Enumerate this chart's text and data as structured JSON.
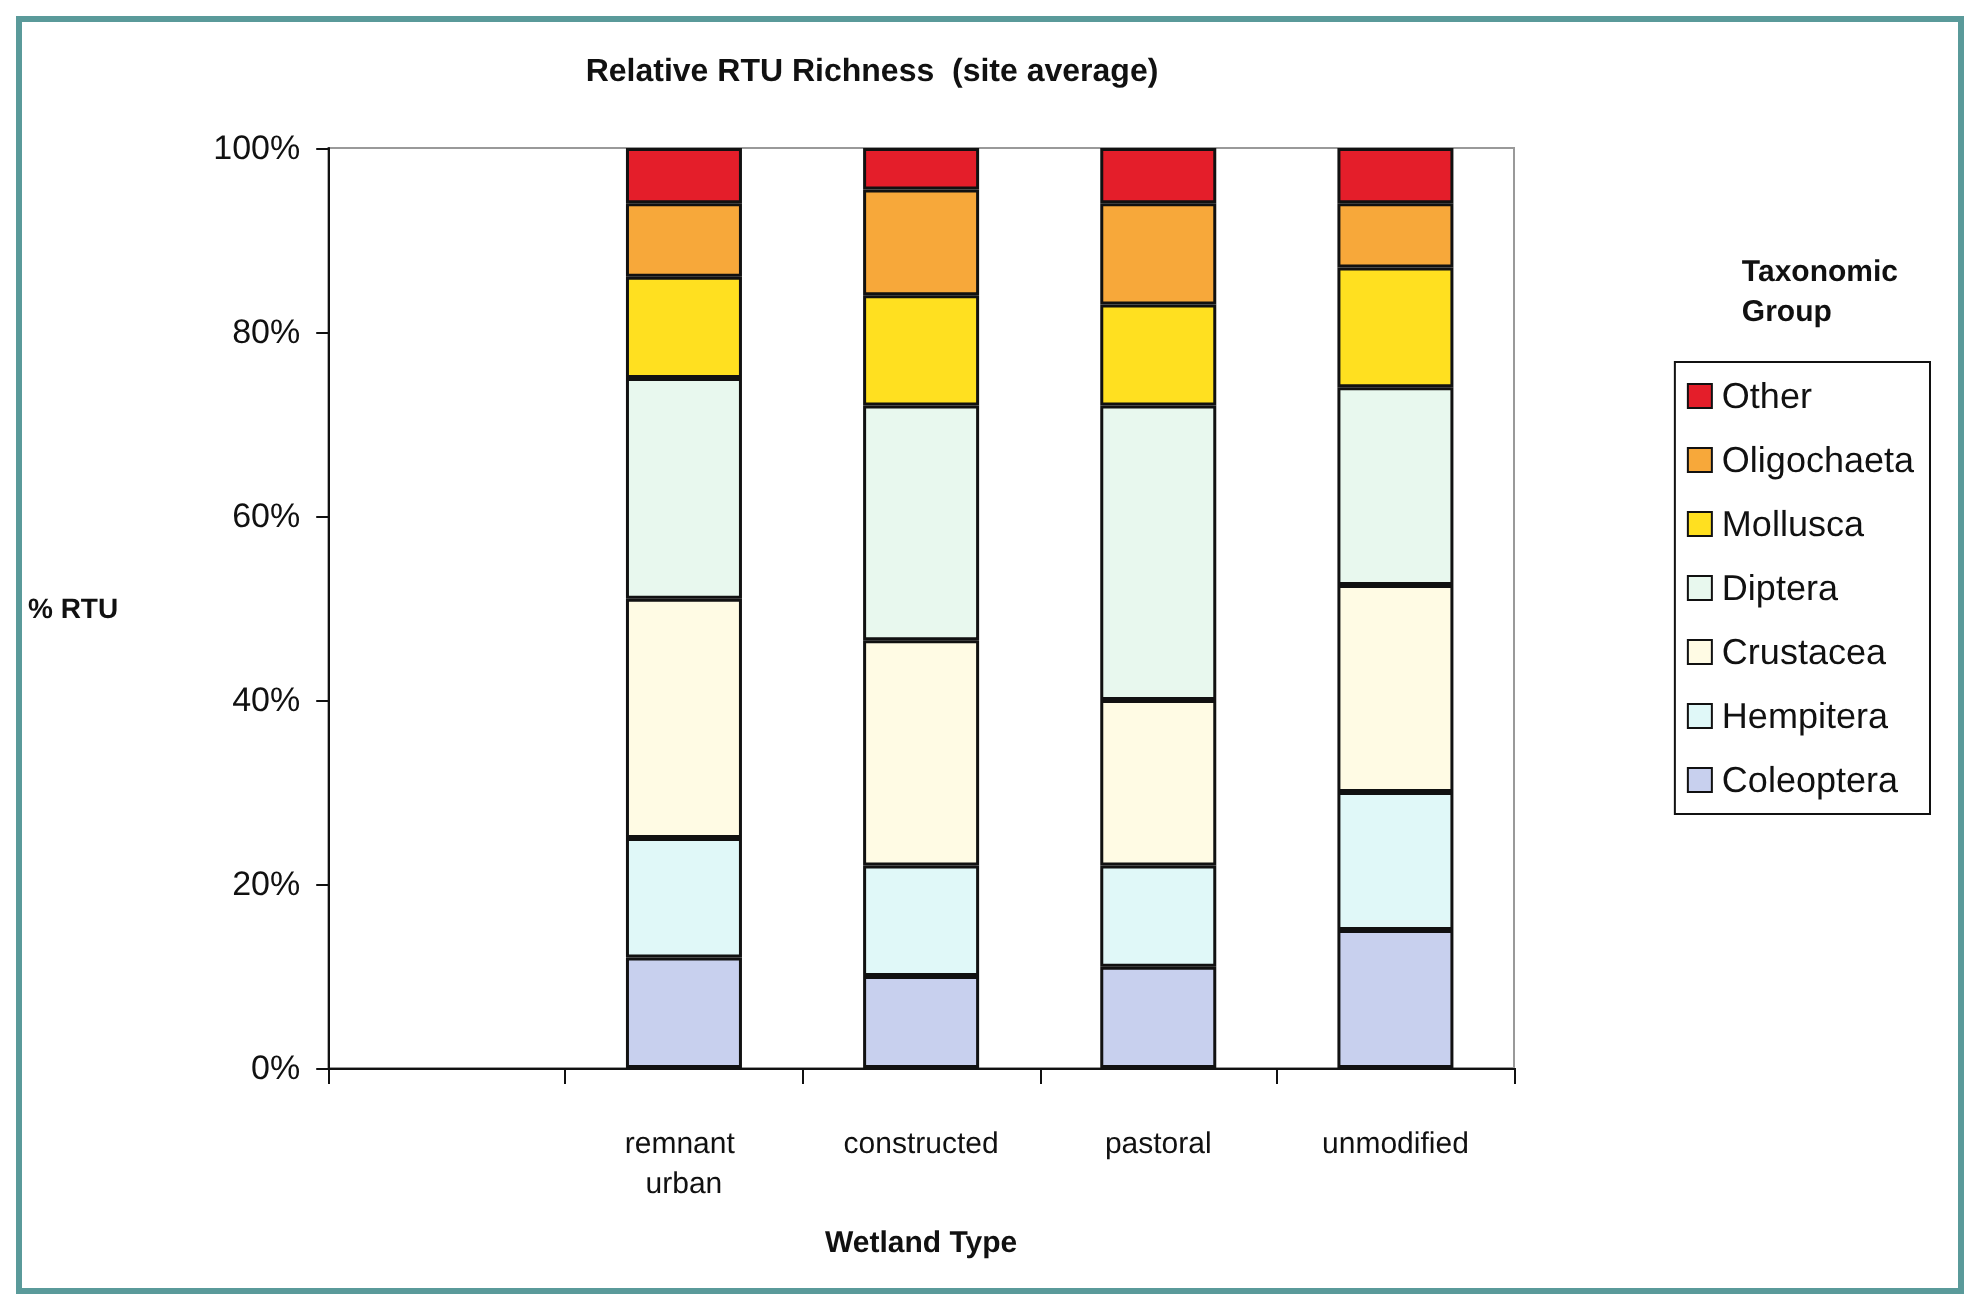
{
  "chart_data": {
    "type": "bar",
    "stacked": true,
    "title": "Relative RTU Richness  (site average)",
    "xlabel": "Wetland Type",
    "ylabel": "% RTU",
    "legend_title": "Taxonomic Group",
    "legend": "right",
    "categories": [
      null,
      "remnant urban",
      "constructed",
      "pastoral",
      "unmodified"
    ],
    "ylim": [
      0,
      100
    ],
    "yticks": [
      {
        "value": 0,
        "label": "0%"
      },
      {
        "value": 20,
        "label": "20%"
      },
      {
        "value": 40,
        "label": "40%"
      },
      {
        "value": 60,
        "label": "60%"
      },
      {
        "value": 80,
        "label": "80%"
      },
      {
        "value": 100,
        "label": "100%"
      }
    ],
    "series": [
      {
        "name": "Coleoptera",
        "color": "#c8d0ee",
        "values": [
          null,
          12,
          10,
          11,
          15
        ]
      },
      {
        "name": "Hempitera",
        "color": "#e0f8f8",
        "values": [
          null,
          13,
          12,
          11,
          15
        ]
      },
      {
        "name": "Crustacea",
        "color": "#fffbe4",
        "values": [
          null,
          26,
          24.5,
          18,
          22.5
        ]
      },
      {
        "name": "Diptera",
        "color": "#e8f8ee",
        "values": [
          null,
          24,
          25.5,
          32,
          21.5
        ]
      },
      {
        "name": "Mollusca",
        "color": "#ffe020",
        "values": [
          null,
          11,
          12,
          11,
          13
        ]
      },
      {
        "name": "Oligochaeta",
        "color": "#f7a83a",
        "values": [
          null,
          8,
          11.5,
          11,
          7
        ]
      },
      {
        "name": "Other",
        "color": "#e41e2a",
        "values": [
          null,
          6,
          4.5,
          6,
          6
        ]
      }
    ]
  }
}
